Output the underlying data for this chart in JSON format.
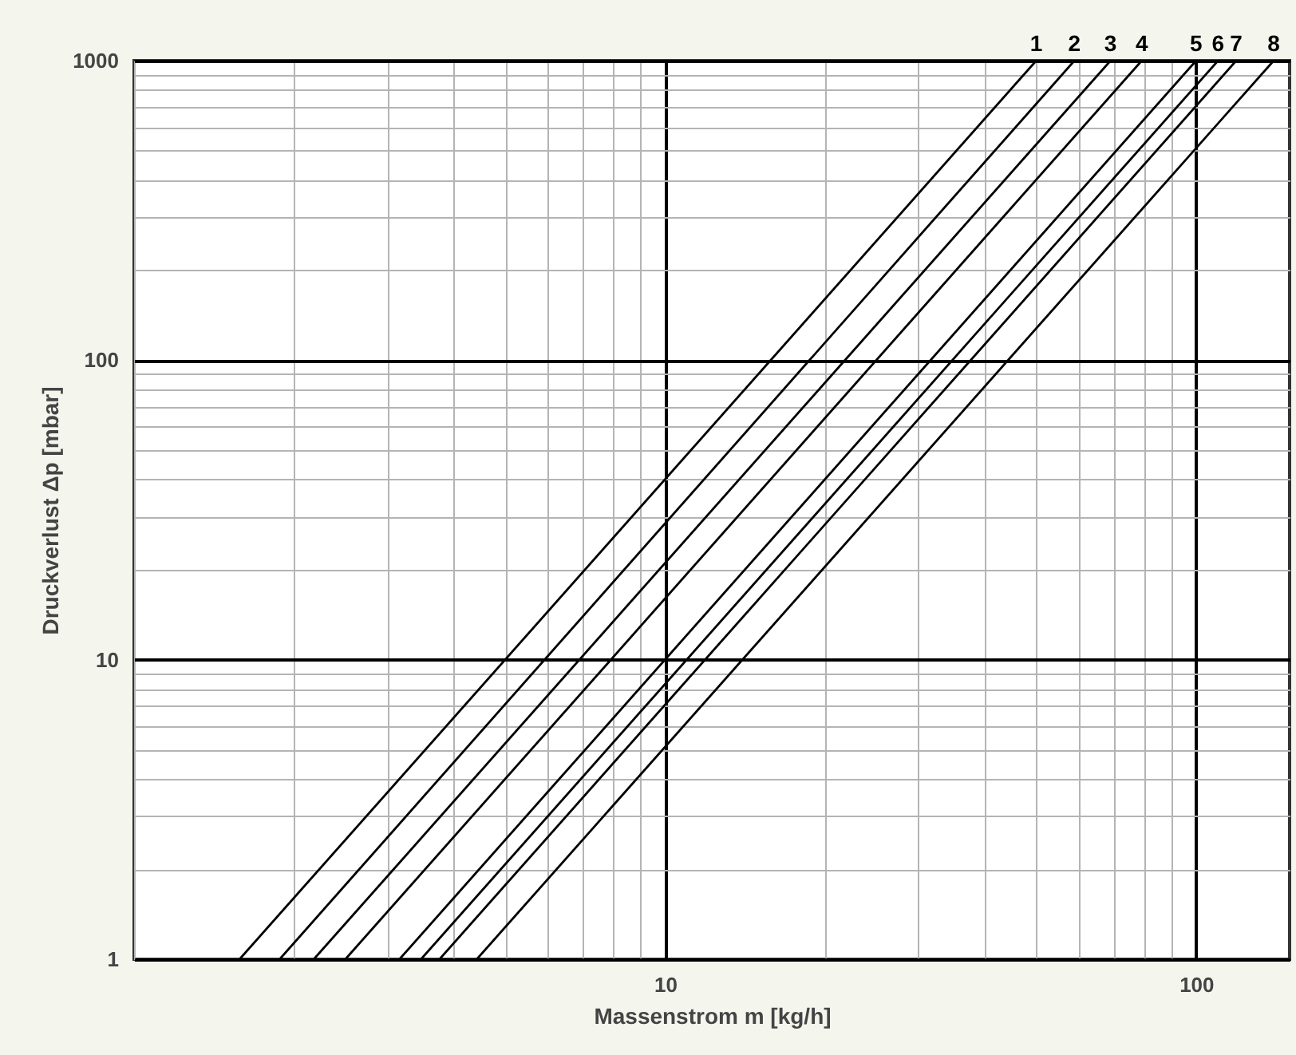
{
  "chart_data": {
    "type": "line",
    "xlabel": "Massenstrom m [kg/h]",
    "ylabel": "Druckverlust Δp [mbar]",
    "log": "xy",
    "grid": true,
    "legend": false,
    "marker": "none",
    "line_style": "solid",
    "xlim": [
      1,
      150
    ],
    "ylim": [
      1,
      1000
    ],
    "xticks": [
      {
        "value": 1,
        "label": null
      },
      {
        "value": 2,
        "label": null
      },
      {
        "value": 3,
        "label": null
      },
      {
        "value": 4,
        "label": null
      },
      {
        "value": 5,
        "label": null
      },
      {
        "value": 6,
        "label": null
      },
      {
        "value": 7,
        "label": null
      },
      {
        "value": 8,
        "label": null
      },
      {
        "value": 9,
        "label": null
      },
      10,
      {
        "value": 20,
        "label": null
      },
      {
        "value": 30,
        "label": null
      },
      {
        "value": 40,
        "label": null
      },
      {
        "value": 50,
        "label": null
      },
      {
        "value": 60,
        "label": null
      },
      {
        "value": 70,
        "label": null
      },
      {
        "value": 80,
        "label": null
      },
      {
        "value": 90,
        "label": null
      },
      100
    ],
    "yticks": [
      1,
      {
        "value": 2,
        "label": null
      },
      {
        "value": 3,
        "label": null
      },
      {
        "value": 4,
        "label": null
      },
      {
        "value": 5,
        "label": null
      },
      {
        "value": 6,
        "label": null
      },
      {
        "value": 7,
        "label": null
      },
      {
        "value": 8,
        "label": null
      },
      {
        "value": 9,
        "label": null
      },
      10,
      {
        "value": 20,
        "label": null
      },
      {
        "value": 30,
        "label": null
      },
      {
        "value": 40,
        "label": null
      },
      {
        "value": 50,
        "label": null
      },
      {
        "value": 60,
        "label": null
      },
      {
        "value": 70,
        "label": null
      },
      {
        "value": 80,
        "label": null
      },
      {
        "value": 90,
        "label": null
      },
      100,
      {
        "value": 200,
        "label": null
      },
      {
        "value": 300,
        "label": null
      },
      {
        "value": 400,
        "label": null
      },
      {
        "value": 500,
        "label": null
      },
      {
        "value": 600,
        "label": null
      },
      {
        "value": 700,
        "label": null
      },
      {
        "value": 800,
        "label": null
      },
      {
        "value": 900,
        "label": null
      },
      1000
    ],
    "series": [
      {
        "name": "1",
        "color": "#000000",
        "x": [
          1.58,
          50
        ],
        "values": [
          1,
          1000
        ]
      },
      {
        "name": "2",
        "color": "#000000",
        "x": [
          1.88,
          59
        ],
        "values": [
          1,
          1000
        ]
      },
      {
        "name": "3",
        "color": "#000000",
        "x": [
          2.18,
          69
        ],
        "values": [
          1,
          1000
        ]
      },
      {
        "name": "4",
        "color": "#000000",
        "x": [
          2.5,
          79
        ],
        "values": [
          1,
          1000
        ]
      },
      {
        "name": "5",
        "color": "#000000",
        "x": [
          3.16,
          100
        ],
        "values": [
          1,
          1000
        ]
      },
      {
        "name": "6",
        "color": "#000000",
        "x": [
          3.47,
          110
        ],
        "values": [
          1,
          1000
        ]
      },
      {
        "name": "7",
        "color": "#000000",
        "x": [
          3.76,
          119
        ],
        "values": [
          1,
          1000
        ]
      },
      {
        "name": "8",
        "color": "#000000",
        "x": [
          4.42,
          140
        ],
        "values": [
          1,
          1000
        ]
      }
    ]
  }
}
